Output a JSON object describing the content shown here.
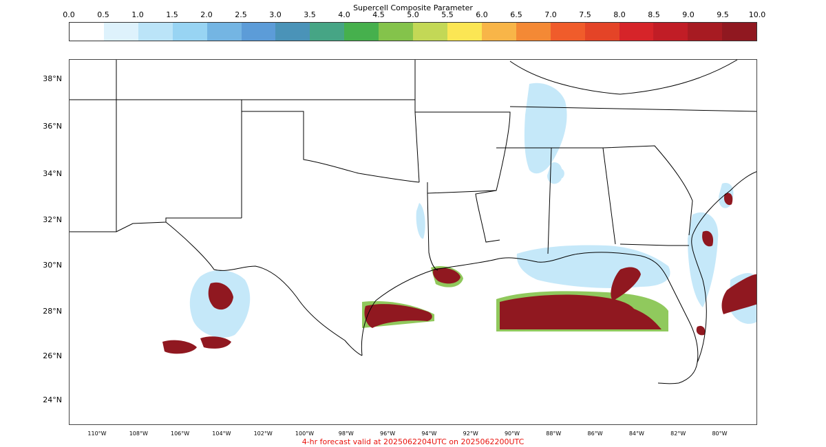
{
  "colorbar": {
    "title": "Supercell Composite Parameter",
    "ticks": [
      "0.0",
      "0.5",
      "1.0",
      "1.5",
      "2.0",
      "2.5",
      "3.0",
      "3.5",
      "4.0",
      "4.5",
      "5.0",
      "5.5",
      "6.0",
      "6.5",
      "7.0",
      "7.5",
      "8.0",
      "8.5",
      "9.0",
      "9.5",
      "10.0"
    ],
    "colors": [
      "#ffffff",
      "#def2fc",
      "#bbe4f8",
      "#98d4f3",
      "#74b5e3",
      "#5c9cd8",
      "#4a93b8",
      "#46a585",
      "#46b04d",
      "#84c34b",
      "#c3d856",
      "#fbe654",
      "#f8b548",
      "#f48935",
      "#f05c2b",
      "#e44427",
      "#d62429",
      "#c11d26",
      "#a71b22",
      "#901820"
    ]
  },
  "axes": {
    "lat_labels": [
      "38°N",
      "36°N",
      "34°N",
      "32°N",
      "30°N",
      "28°N",
      "26°N",
      "24°N"
    ],
    "lon_labels": [
      "110°W",
      "108°W",
      "106°W",
      "104°W",
      "102°W",
      "100°W",
      "98°W",
      "96°W",
      "94°W",
      "92°W",
      "90°W",
      "88°W",
      "86°W",
      "84°W",
      "82°W",
      "80°W"
    ]
  },
  "caption": "4-hr forecast valid at 2025062204UTC on 2025062200UTC"
}
